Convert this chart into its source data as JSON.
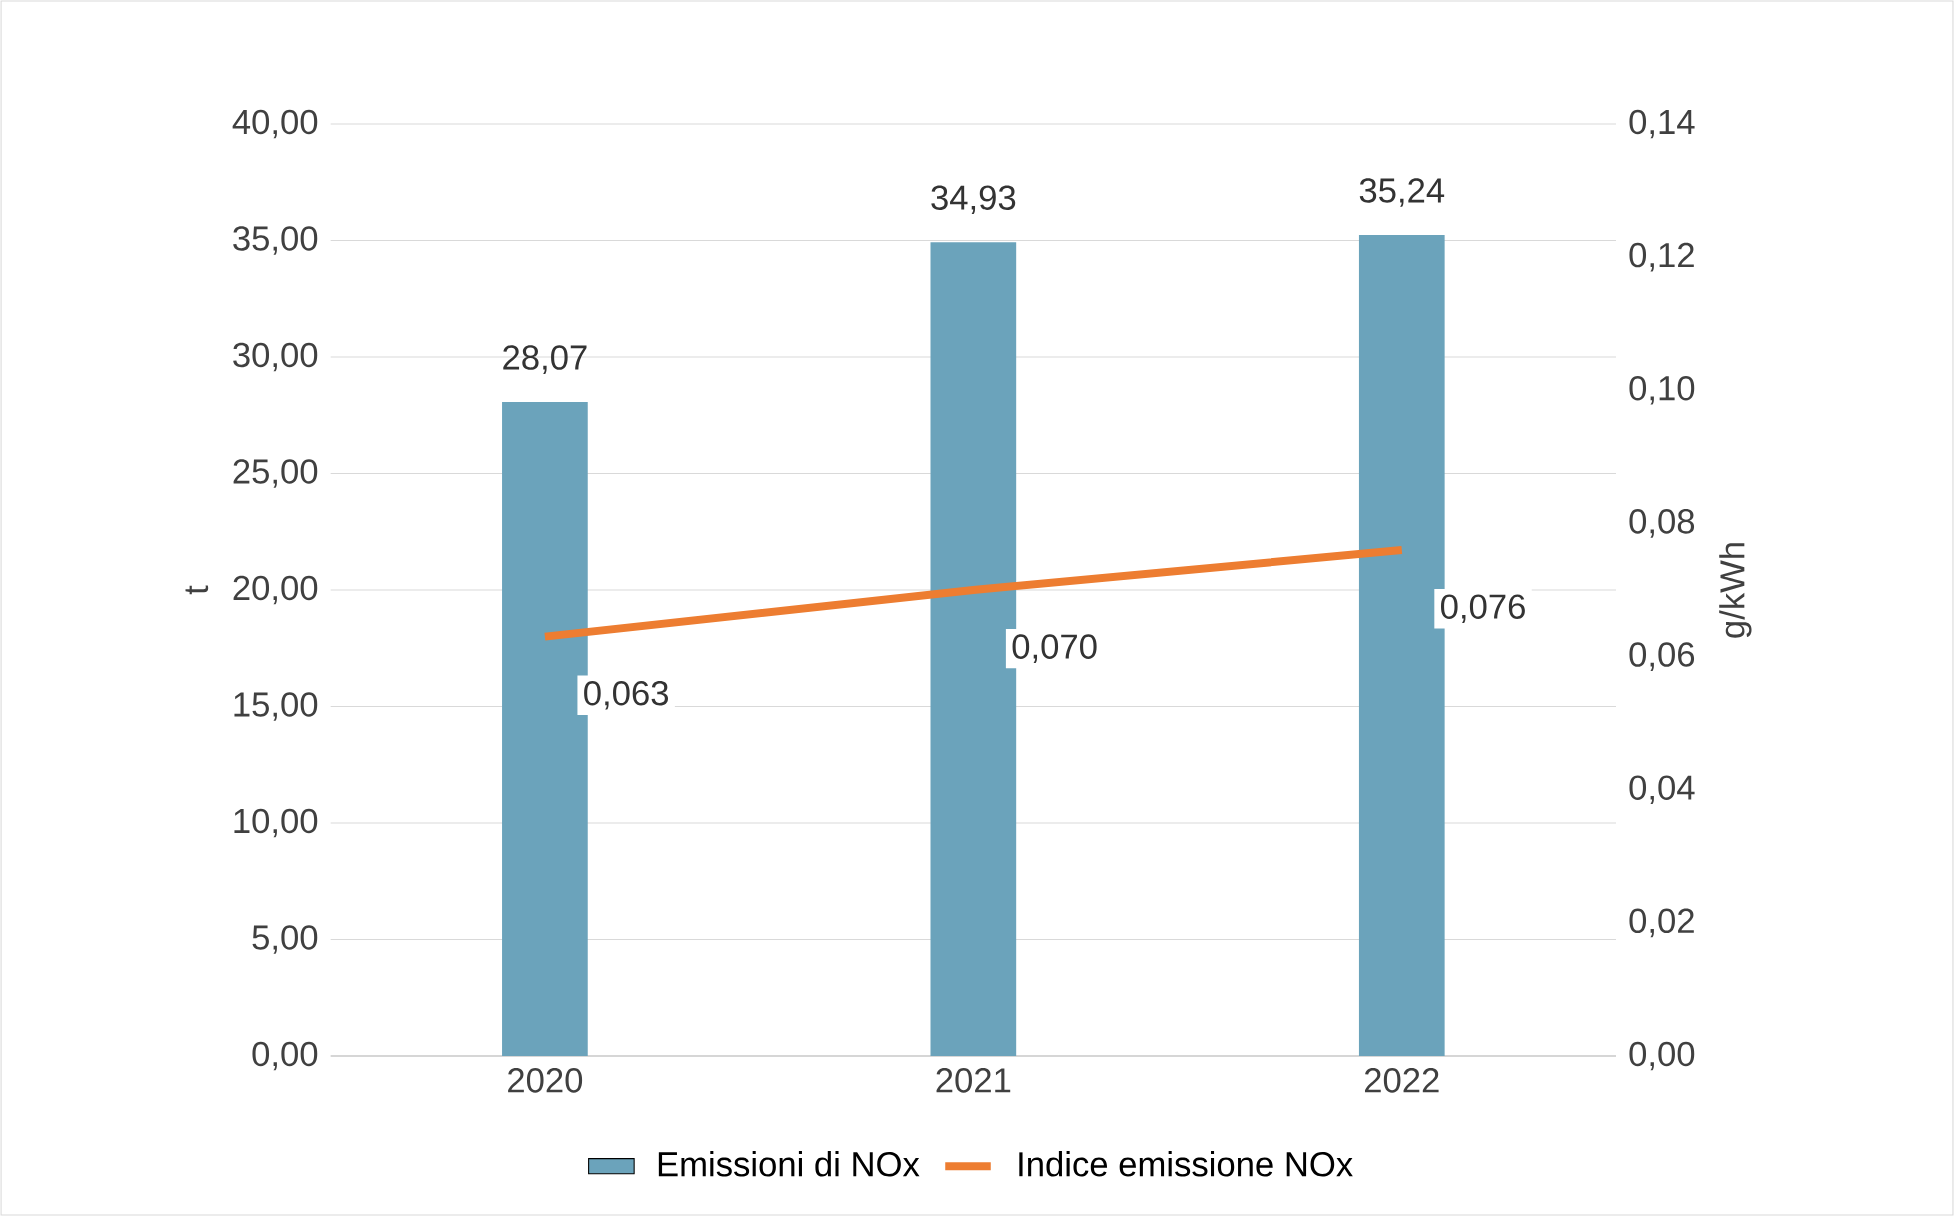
{
  "chart_data": {
    "type": "bar",
    "categories": [
      "2020",
      "2021",
      "2022"
    ],
    "series": [
      {
        "name": "Emissioni di NOx",
        "color": "#6ba3bb",
        "values": [
          28.07,
          34.93,
          35.24
        ],
        "value_labels": [
          "28,07",
          "34,93",
          "35,24"
        ]
      },
      {
        "name": "Indice emissione NOx",
        "type": "line",
        "axis": "y2",
        "color": "#ed7d31",
        "values": [
          0.063,
          0.07,
          0.076
        ],
        "value_labels": [
          "0,063",
          "0,070",
          "0,076"
        ]
      }
    ],
    "ylabel": "t",
    "y2label": "g/kWh",
    "ylim": [
      0,
      40
    ],
    "yticks": [
      {
        "value": 0,
        "label": "0,00"
      },
      {
        "value": 5,
        "label": "5,00"
      },
      {
        "value": 10,
        "label": "10,00"
      },
      {
        "value": 15,
        "label": "15,00"
      },
      {
        "value": 20,
        "label": "20,00"
      },
      {
        "value": 25,
        "label": "25,00"
      },
      {
        "value": 30,
        "label": "30,00"
      },
      {
        "value": 35,
        "label": "35,00"
      },
      {
        "value": 40,
        "label": "40,00"
      }
    ],
    "y2lim": [
      0,
      0.14
    ],
    "y2ticks": [
      {
        "value": 0,
        "label": "0,00"
      },
      {
        "value": 0.02,
        "label": "0,02"
      },
      {
        "value": 0.04,
        "label": "0,04"
      },
      {
        "value": 0.06,
        "label": "0,06"
      },
      {
        "value": 0.08,
        "label": "0,08"
      },
      {
        "value": 0.1,
        "label": "0,10"
      },
      {
        "value": 0.12,
        "label": "0,12"
      },
      {
        "value": 0.14,
        "label": "0,14"
      }
    ],
    "grid": "y",
    "legend": "bottom"
  }
}
